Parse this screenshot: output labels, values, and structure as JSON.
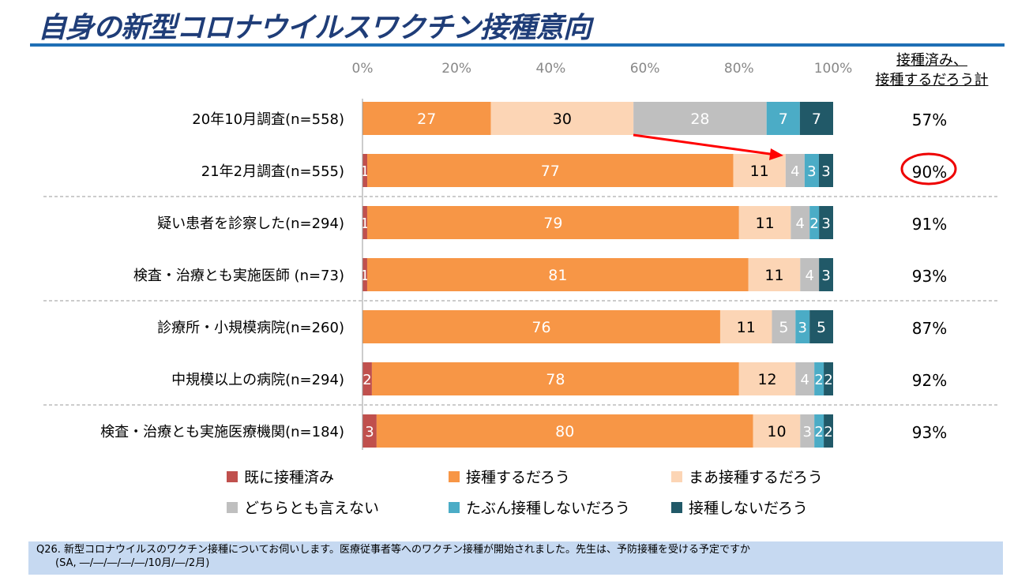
{
  "title": "自身の新型コロナウイルスワクチン接種意向",
  "right_header": [
    "接種済み、",
    "接種するだろう計"
  ],
  "footer": {
    "line1": "Q26. 新型コロナウイルスのワクチン接種についてお伺いします。医療従事者等へのワクチン接種が開始されました。先生は、予防接種を受ける予定ですか",
    "line2": "(SA, ―/―/―/―/―/10月/―/2月)"
  },
  "chart_data": {
    "type": "bar",
    "orientation": "horizontal",
    "stacked": true,
    "xlim": [
      0,
      100
    ],
    "ticks": [
      "0%",
      "20%",
      "40%",
      "60%",
      "80%",
      "100%"
    ],
    "legend_position": "bottom",
    "series": [
      {
        "name": "既に接種済み",
        "color": "#c0504d"
      },
      {
        "name": "接種するだろう",
        "color": "#f79646"
      },
      {
        "name": "まあ接種するだろう",
        "color": "#fcd5b5"
      },
      {
        "name": "どちらとも言えない",
        "color": "#bfbfbf"
      },
      {
        "name": "たぶん接種しないだろう",
        "color": "#4bacc6"
      },
      {
        "name": "接種しないだろう",
        "color": "#215968"
      }
    ],
    "categories": [
      {
        "label": "20年10月調査(n=558)",
        "values": [
          0,
          27,
          30,
          28,
          7,
          7
        ],
        "total": "57%"
      },
      {
        "label": "21年2月調査(n=555)",
        "values": [
          1,
          77,
          11,
          4,
          3,
          3
        ],
        "total": "90%"
      },
      {
        "label": "疑い患者を診察した(n=294)",
        "values": [
          1,
          79,
          11,
          4,
          2,
          3
        ],
        "total": "91%"
      },
      {
        "label": "検査・治療とも実施医師 (n=73)",
        "values": [
          1,
          81,
          11,
          4,
          0,
          3
        ],
        "total": "93%"
      },
      {
        "label": "診療所・小規模病院(n=260)",
        "values": [
          0,
          76,
          11,
          5,
          3,
          5
        ],
        "total": "87%"
      },
      {
        "label": "中規模以上の病院(n=294)",
        "values": [
          2,
          78,
          12,
          4,
          2,
          2
        ],
        "total": "92%"
      },
      {
        "label": "検査・治療とも実施医療機関(n=184)",
        "values": [
          3,
          80,
          10,
          3,
          2,
          2
        ],
        "total": "93%"
      }
    ],
    "separators_after": [
      1,
      3,
      5
    ],
    "annotations": [
      "arrow from row 1 to row 2",
      "circle around 90%"
    ]
  }
}
